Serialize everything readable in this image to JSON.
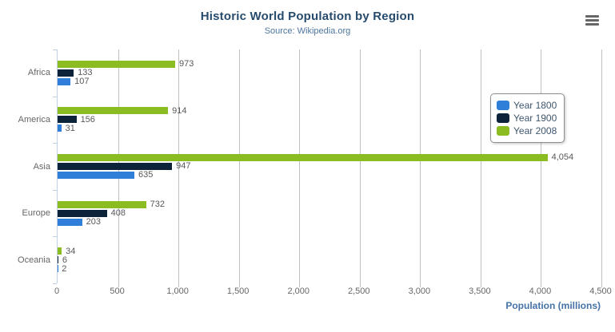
{
  "chart_data": {
    "type": "bar",
    "title": "Historic World Population by Region",
    "subtitle": "Source: Wikipedia.org",
    "categories": [
      "Africa",
      "America",
      "Asia",
      "Europe",
      "Oceania"
    ],
    "series": [
      {
        "name": "Year 1800",
        "color": "#2f7ed8",
        "values": [
          107,
          31,
          635,
          203,
          2
        ]
      },
      {
        "name": "Year 1900",
        "color": "#0d233a",
        "values": [
          133,
          156,
          947,
          408,
          6
        ]
      },
      {
        "name": "Year 2008",
        "color": "#8bbc21",
        "values": [
          973,
          914,
          4054,
          732,
          34
        ]
      }
    ],
    "series_display_order_top_to_bottom": [
      "Year 2008",
      "Year 1900",
      "Year 1800"
    ],
    "xlabel": "Population (millions)",
    "xlim": [
      0,
      4500
    ],
    "tick_interval": 500,
    "tick_labels": [
      "0",
      "500",
      "1,000",
      "1,500",
      "2,000",
      "2,500",
      "3,000",
      "3,500",
      "4,000",
      "4,500"
    ],
    "grid": true,
    "data_labels": true,
    "legend_position": "right-middle",
    "colors": {
      "title": "#274b6d",
      "subtitle": "#4d759e",
      "axis_title": "#4572a7",
      "tick_text": "#666666",
      "data_label_text": "#585858",
      "gridline": "#c0c0c0",
      "axis_line": "#c0d0e0",
      "legend_border": "#909090"
    }
  },
  "icons": {
    "menu": "hamburger-menu-icon"
  }
}
